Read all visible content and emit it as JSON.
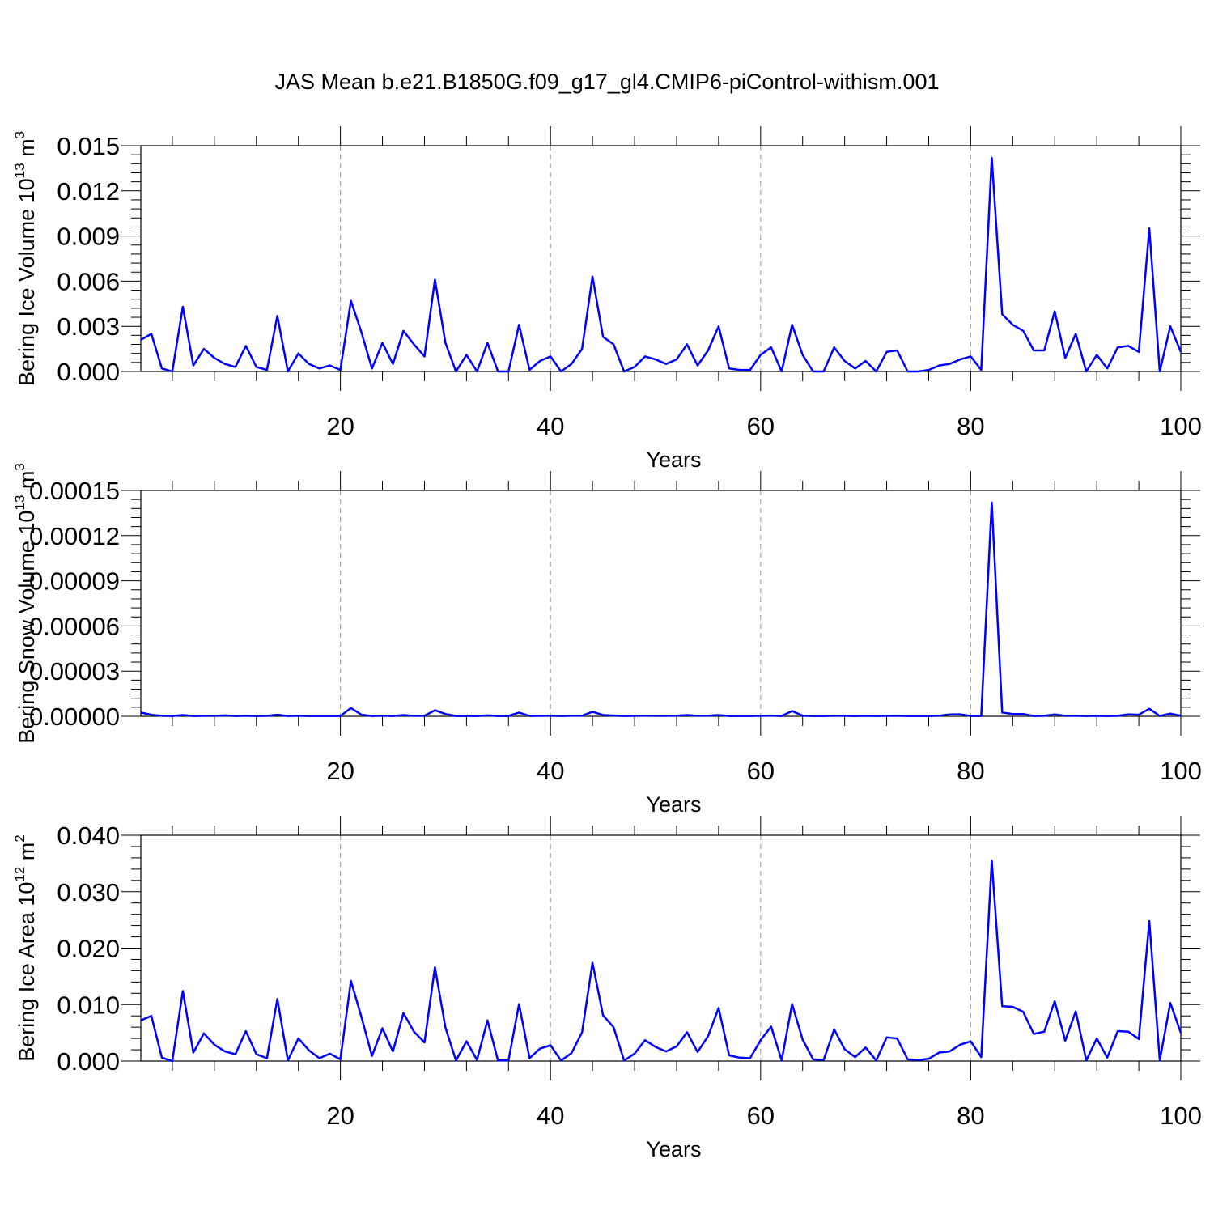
{
  "title": "JAS Mean b.e21.B1850G.f09_g17_gl4.CMIP6-piControl-withism.001",
  "series_color": "#0000ff",
  "chart_data": [
    {
      "type": "line",
      "ylabel": "Bering Ice Volume 10",
      "ylabel_exp": "13",
      "ylabel_unit": " m",
      "ylabel_unit_exp": "3",
      "xlabel": "Years",
      "xlim": [
        1,
        100
      ],
      "ylim": [
        0,
        0.015
      ],
      "xticks": [
        20,
        40,
        60,
        80,
        100
      ],
      "yticks": [
        0.0,
        0.003,
        0.006,
        0.009,
        0.012,
        0.015
      ],
      "ytick_labels": [
        "0.000",
        "0.003",
        "0.006",
        "0.009",
        "0.012",
        "0.015"
      ],
      "grid": "vertical-dashed",
      "x": [
        1,
        2,
        3,
        4,
        5,
        6,
        7,
        8,
        9,
        10,
        11,
        12,
        13,
        14,
        15,
        16,
        17,
        18,
        19,
        20,
        21,
        22,
        23,
        24,
        25,
        26,
        27,
        28,
        29,
        30,
        31,
        32,
        33,
        34,
        35,
        36,
        37,
        38,
        39,
        40,
        41,
        42,
        43,
        44,
        45,
        46,
        47,
        48,
        49,
        50,
        51,
        52,
        53,
        54,
        55,
        56,
        57,
        58,
        59,
        60,
        61,
        62,
        63,
        64,
        65,
        66,
        67,
        68,
        69,
        70,
        71,
        72,
        73,
        74,
        75,
        76,
        77,
        78,
        79,
        80,
        81,
        82,
        83,
        84,
        85,
        86,
        87,
        88,
        89,
        90,
        91,
        92,
        93,
        94,
        95,
        96,
        97,
        98,
        99,
        100
      ],
      "values": [
        0.0021,
        0.0025,
        0.0002,
        0.0,
        0.0043,
        0.0004,
        0.0015,
        0.0009,
        0.0005,
        0.0003,
        0.0017,
        0.0003,
        0.0001,
        0.0037,
        0.0,
        0.0012,
        0.0005,
        0.0002,
        0.0004,
        0.0001,
        0.0047,
        0.0026,
        0.0002,
        0.0019,
        0.0005,
        0.0027,
        0.0018,
        0.001,
        0.0061,
        0.0019,
        0.0,
        0.0011,
        0.0,
        0.0019,
        0.0,
        0.0,
        0.0031,
        0.0001,
        0.0007,
        0.001,
        0.0,
        0.0005,
        0.0015,
        0.0063,
        0.0023,
        0.0018,
        0.0,
        0.0003,
        0.001,
        0.0008,
        0.0005,
        0.0008,
        0.0018,
        0.0004,
        0.0014,
        0.003,
        0.0002,
        0.0001,
        0.0001,
        0.0011,
        0.0016,
        0.0,
        0.0031,
        0.0011,
        0.0,
        0.0,
        0.0016,
        0.0007,
        0.0002,
        0.0007,
        0.0,
        0.0013,
        0.0014,
        0.0,
        0.0,
        0.0001,
        0.0004,
        0.0005,
        0.0008,
        0.001,
        0.0001,
        0.0142,
        0.0038,
        0.0031,
        0.0027,
        0.0014,
        0.0014,
        0.004,
        0.0009,
        0.0025,
        0.0,
        0.0011,
        0.0002,
        0.0016,
        0.0017,
        0.0013,
        0.0095,
        0.0,
        0.003,
        0.0013
      ]
    },
    {
      "type": "line",
      "ylabel": "Bering Snow Volume 10",
      "ylabel_exp": "13",
      "ylabel_unit": " m",
      "ylabel_unit_exp": "3",
      "xlabel": "Years",
      "xlim": [
        1,
        100
      ],
      "ylim": [
        0,
        0.00015
      ],
      "xticks": [
        20,
        40,
        60,
        80,
        100
      ],
      "yticks": [
        0.0,
        3e-05,
        6e-05,
        9e-05,
        0.00012,
        0.00015
      ],
      "ytick_labels": [
        "0.00000",
        "0.00003",
        "0.00006",
        "0.00009",
        "0.00012",
        "0.00015"
      ],
      "grid": "vertical-dashed",
      "x": [
        1,
        2,
        3,
        4,
        5,
        6,
        7,
        8,
        9,
        10,
        11,
        12,
        13,
        14,
        15,
        16,
        17,
        18,
        19,
        20,
        21,
        22,
        23,
        24,
        25,
        26,
        27,
        28,
        29,
        30,
        31,
        32,
        33,
        34,
        35,
        36,
        37,
        38,
        39,
        40,
        41,
        42,
        43,
        44,
        45,
        46,
        47,
        48,
        49,
        50,
        51,
        52,
        53,
        54,
        55,
        56,
        57,
        58,
        59,
        60,
        61,
        62,
        63,
        64,
        65,
        66,
        67,
        68,
        69,
        70,
        71,
        72,
        73,
        74,
        75,
        76,
        77,
        78,
        79,
        80,
        81,
        82,
        83,
        84,
        85,
        86,
        87,
        88,
        89,
        90,
        91,
        92,
        93,
        94,
        95,
        96,
        97,
        98,
        99,
        100
      ],
      "values": [
        2.5e-06,
        1e-06,
        3e-07,
        2e-07,
        8e-07,
        2e-07,
        3e-07,
        3e-07,
        6e-07,
        2e-07,
        4e-07,
        2e-07,
        3e-07,
        1e-06,
        2e-07,
        4e-07,
        2e-07,
        2e-07,
        2e-07,
        2e-07,
        5.5e-06,
        1e-06,
        2e-07,
        4e-07,
        2e-07,
        8e-07,
        3e-07,
        3e-07,
        4e-06,
        1.5e-06,
        2e-07,
        2e-07,
        2e-07,
        6e-07,
        2e-07,
        2e-07,
        2.5e-06,
        2e-07,
        3e-07,
        4e-07,
        2e-07,
        4e-07,
        4e-07,
        3e-06,
        8e-07,
        5e-07,
        2e-07,
        3e-07,
        4e-07,
        3e-07,
        3e-07,
        4e-07,
        8e-07,
        3e-07,
        4e-07,
        8e-07,
        2e-07,
        2e-07,
        2e-07,
        3e-07,
        5e-07,
        2e-07,
        3.5e-06,
        4e-07,
        2e-07,
        2e-07,
        4e-07,
        3e-07,
        2e-07,
        3e-07,
        2e-07,
        3e-07,
        4e-07,
        2e-07,
        2e-07,
        2e-07,
        4e-07,
        1.2e-06,
        1.3e-06,
        2e-07,
        2e-07,
        0.000142,
        2.5e-06,
        1.5e-06,
        1.5e-06,
        2e-07,
        3e-07,
        1.2e-06,
        3e-07,
        4e-07,
        2e-07,
        3e-07,
        2e-07,
        3e-07,
        1.3e-06,
        1e-06,
        5e-06,
        2e-07,
        1.8e-06,
        3e-07
      ]
    },
    {
      "type": "line",
      "ylabel": "Bering Ice Area 10",
      "ylabel_exp": "12",
      "ylabel_unit": " m",
      "ylabel_unit_exp": "2",
      "xlabel": "Years",
      "xlim": [
        1,
        100
      ],
      "ylim": [
        0,
        0.04
      ],
      "xticks": [
        20,
        40,
        60,
        80,
        100
      ],
      "yticks": [
        0.0,
        0.01,
        0.02,
        0.03,
        0.04
      ],
      "ytick_labels": [
        "0.000",
        "0.010",
        "0.020",
        "0.030",
        "0.040"
      ],
      "grid": "vertical-dashed",
      "x": [
        1,
        2,
        3,
        4,
        5,
        6,
        7,
        8,
        9,
        10,
        11,
        12,
        13,
        14,
        15,
        16,
        17,
        18,
        19,
        20,
        21,
        22,
        23,
        24,
        25,
        26,
        27,
        28,
        29,
        30,
        31,
        32,
        33,
        34,
        35,
        36,
        37,
        38,
        39,
        40,
        41,
        42,
        43,
        44,
        45,
        46,
        47,
        48,
        49,
        50,
        51,
        52,
        53,
        54,
        55,
        56,
        57,
        58,
        59,
        60,
        61,
        62,
        63,
        64,
        65,
        66,
        67,
        68,
        69,
        70,
        71,
        72,
        73,
        74,
        75,
        76,
        77,
        78,
        79,
        80,
        81,
        82,
        83,
        84,
        85,
        86,
        87,
        88,
        89,
        90,
        91,
        92,
        93,
        94,
        95,
        96,
        97,
        98,
        99,
        100
      ],
      "values": [
        0.0072,
        0.008,
        0.0006,
        0.0,
        0.0124,
        0.0015,
        0.0049,
        0.0029,
        0.0017,
        0.0012,
        0.0053,
        0.0012,
        0.0005,
        0.011,
        0.0001,
        0.004,
        0.0019,
        0.0005,
        0.0013,
        0.0003,
        0.0142,
        0.0078,
        0.0009,
        0.0058,
        0.0017,
        0.0085,
        0.0052,
        0.0033,
        0.0166,
        0.0059,
        0.0001,
        0.0035,
        0.0002,
        0.0072,
        0.0001,
        0.0001,
        0.0101,
        0.0005,
        0.0022,
        0.0028,
        0.0001,
        0.0014,
        0.0051,
        0.0174,
        0.0081,
        0.006,
        0.0001,
        0.0013,
        0.0037,
        0.0025,
        0.0017,
        0.0026,
        0.0051,
        0.0016,
        0.0044,
        0.0094,
        0.001,
        0.0006,
        0.0005,
        0.0037,
        0.0061,
        0.0001,
        0.0101,
        0.0038,
        0.0003,
        0.0002,
        0.0056,
        0.0021,
        0.0007,
        0.0024,
        0.0001,
        0.0042,
        0.004,
        0.0003,
        0.0002,
        0.0004,
        0.0015,
        0.0017,
        0.0029,
        0.0035,
        0.0007,
        0.0355,
        0.0097,
        0.0096,
        0.0087,
        0.0048,
        0.0052,
        0.0106,
        0.0036,
        0.0088,
        0.0001,
        0.004,
        0.0006,
        0.0053,
        0.0052,
        0.0039,
        0.0248,
        0.0001,
        0.0103,
        0.005
      ]
    }
  ]
}
